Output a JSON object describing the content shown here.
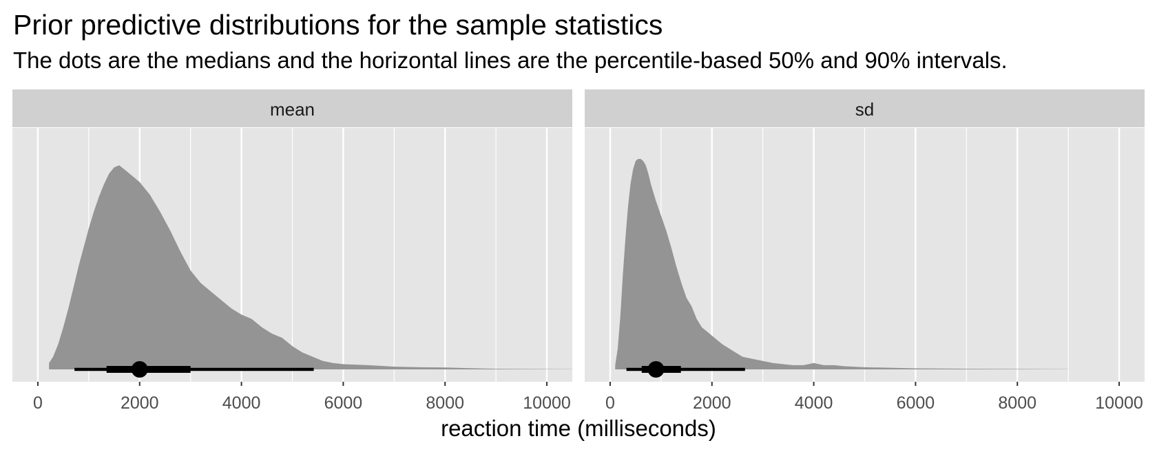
{
  "title": "Prior predictive distributions for the sample statistics",
  "subtitle": "The dots are the medians and the horizontal lines are the percentile-based 50% and 90% intervals.",
  "colors": {
    "panel_bg": "#e5e5e5",
    "strip_bg": "#d0d0d0",
    "density_fill": "#949494",
    "gridline": "#ffffff",
    "interval": "#000000"
  },
  "chart_data": {
    "type": "area",
    "xlabel": "reaction time (milliseconds)",
    "ylabel": "",
    "xlim": [
      -500,
      10500
    ],
    "x_ticks": [
      0,
      2000,
      4000,
      6000,
      8000,
      10000
    ],
    "x_tick_labels": [
      "0",
      "2000",
      "4000",
      "6000",
      "8000",
      "10000"
    ],
    "grid": true,
    "legend": "none",
    "facets": [
      {
        "label": "mean",
        "density": {
          "x": [
            220,
            300,
            400,
            500,
            600,
            700,
            800,
            900,
            1000,
            1100,
            1200,
            1300,
            1400,
            1500,
            1600,
            1700,
            1800,
            1900,
            2000,
            2200,
            2400,
            2600,
            2800,
            3000,
            3200,
            3400,
            3600,
            3800,
            4000,
            4200,
            4400,
            4600,
            4800,
            5000,
            5200,
            5400,
            5600,
            5800,
            6000,
            6500,
            7000,
            7500,
            8000,
            8500,
            9000,
            10500
          ],
          "y": [
            0.03,
            0.06,
            0.12,
            0.2,
            0.29,
            0.39,
            0.49,
            0.58,
            0.67,
            0.75,
            0.82,
            0.88,
            0.93,
            0.96,
            0.97,
            0.95,
            0.93,
            0.91,
            0.89,
            0.83,
            0.75,
            0.66,
            0.56,
            0.47,
            0.41,
            0.37,
            0.33,
            0.29,
            0.26,
            0.24,
            0.2,
            0.17,
            0.15,
            0.11,
            0.08,
            0.06,
            0.04,
            0.03,
            0.025,
            0.02,
            0.013,
            0.01,
            0.009,
            0.006,
            0.003,
            0.001
          ]
        },
        "median": 2000,
        "interval_50": [
          1350,
          3000
        ],
        "interval_90": [
          720,
          5420
        ]
      },
      {
        "label": "sd",
        "density": {
          "x": [
            100,
            150,
            200,
            250,
            300,
            350,
            400,
            450,
            500,
            550,
            600,
            650,
            700,
            750,
            800,
            850,
            900,
            1000,
            1100,
            1200,
            1300,
            1400,
            1500,
            1600,
            1700,
            1800,
            1900,
            2000,
            2200,
            2400,
            2600,
            2800,
            3000,
            3200,
            3400,
            3600,
            3800,
            4000,
            4100,
            4200,
            4400,
            4600,
            5000,
            5500,
            6000,
            7000,
            8000,
            9000
          ],
          "y": [
            0.02,
            0.1,
            0.25,
            0.45,
            0.62,
            0.77,
            0.88,
            0.95,
            0.99,
            1.0,
            1.0,
            0.99,
            0.97,
            0.93,
            0.88,
            0.84,
            0.8,
            0.73,
            0.66,
            0.58,
            0.49,
            0.41,
            0.34,
            0.3,
            0.24,
            0.2,
            0.18,
            0.16,
            0.12,
            0.09,
            0.06,
            0.05,
            0.04,
            0.03,
            0.025,
            0.02,
            0.02,
            0.03,
            0.025,
            0.02,
            0.02,
            0.015,
            0.01,
            0.008,
            0.005,
            0.003,
            0.002,
            0.001
          ]
        },
        "median": 900,
        "interval_50": [
          620,
          1390
        ],
        "interval_90": [
          320,
          2650
        ]
      }
    ]
  }
}
